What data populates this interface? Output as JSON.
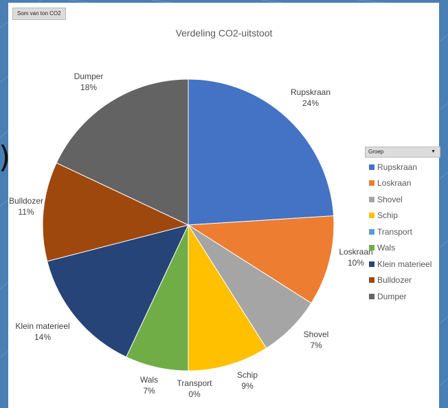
{
  "pivot_field_button": "Som van ton CO2",
  "legend_header": {
    "label": "Groep"
  },
  "colors": {
    "background": "#4a7fb3",
    "panel": "#ffffff"
  },
  "chart_data": {
    "type": "pie",
    "title": "Verdeling CO2-uitstoot",
    "categories": [
      "Rupskraan",
      "Loskraan",
      "Shovel",
      "Schip",
      "Transport",
      "Wals",
      "Klein materieel",
      "Bulldozer",
      "Dumper"
    ],
    "values": [
      24,
      10,
      7,
      9,
      0,
      7,
      14,
      11,
      18
    ],
    "data_labels": [
      {
        "name": "Rupskraan",
        "pct": "24%"
      },
      {
        "name": "Loskraan",
        "pct": "10%"
      },
      {
        "name": "Shovel",
        "pct": "7%"
      },
      {
        "name": "Schip",
        "pct": "9%"
      },
      {
        "name": "Transport",
        "pct": "0%"
      },
      {
        "name": "Wals",
        "pct": "7%"
      },
      {
        "name": "Klein materieel",
        "pct": "14%"
      },
      {
        "name": "Bulldozer",
        "pct": "11%"
      },
      {
        "name": "Dumper",
        "pct": "18%"
      }
    ],
    "colors": [
      "#4472c4",
      "#ed7d31",
      "#a5a5a5",
      "#ffc000",
      "#5b9bd5",
      "#70ad47",
      "#264478",
      "#9e480e",
      "#636363"
    ],
    "legend_position": "right"
  }
}
